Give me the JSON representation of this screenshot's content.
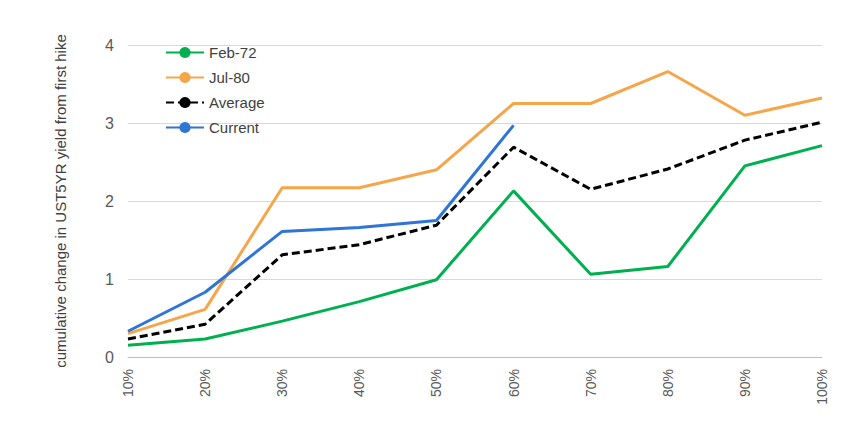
{
  "chart_data": {
    "type": "line",
    "y_label": "cumulative change in UST5YR yield from first hike",
    "categories": [
      "10%",
      "20%",
      "30%",
      "40%",
      "50%",
      "60%",
      "70%",
      "80%",
      "90%",
      "100%"
    ],
    "series": [
      {
        "name": "Feb-72",
        "color": "#00b050",
        "line_style": "solid",
        "values": [
          0.15,
          0.23,
          0.46,
          0.71,
          0.99,
          2.13,
          1.06,
          1.16,
          2.45,
          2.71
        ]
      },
      {
        "name": "Jul-80",
        "color": "#f5a64a",
        "line_style": "solid",
        "values": [
          0.3,
          0.61,
          2.17,
          2.17,
          2.4,
          3.25,
          3.25,
          3.66,
          3.1,
          3.32
        ]
      },
      {
        "name": "Average",
        "color": "#000000",
        "line_style": "dashed",
        "values": [
          0.23,
          0.42,
          1.31,
          1.44,
          1.69,
          2.69,
          2.15,
          2.41,
          2.78,
          3.01
        ]
      },
      {
        "name": "Current",
        "color": "#2e75d6",
        "line_style": "solid",
        "values": [
          0.33,
          0.83,
          1.61,
          1.66,
          1.75,
          2.97,
          null,
          null,
          null,
          null
        ]
      }
    ],
    "ylim": [
      0,
      4
    ],
    "yticks": [
      0,
      1,
      2,
      3,
      4
    ],
    "grid": true,
    "legend": "upper left"
  }
}
